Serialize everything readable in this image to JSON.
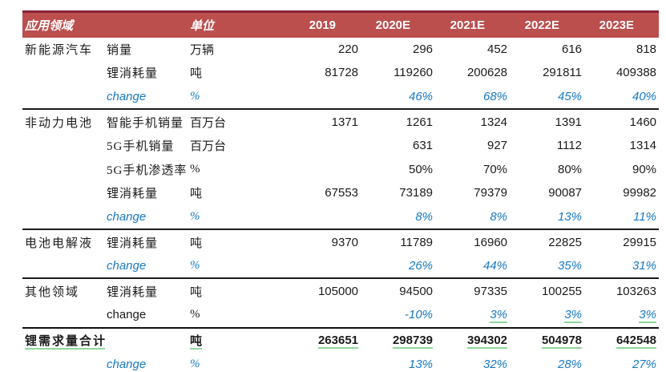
{
  "doc": {
    "type": "lithium-demand-forecast-table",
    "colors": {
      "header_bar": "#bb4f4e",
      "header_top_border": "#8c2135",
      "bottom_rule": "#c0504d",
      "change_blue": "#1779c4",
      "green_underline": "#90d79b",
      "section_rule": "#1b1b1b"
    }
  },
  "table": {
    "header": {
      "app_label": "应用领域",
      "unit_label": "单位",
      "years": [
        "2019",
        "2020E",
        "2021E",
        "2022E",
        "2023E"
      ]
    },
    "rows": [
      {
        "group": "新能源汽车",
        "item": "销量",
        "unit": "万辆",
        "values": [
          "220",
          "296",
          "452",
          "616",
          "818"
        ],
        "label_style": "",
        "values_style": "",
        "section": ""
      },
      {
        "group": "",
        "item": "锂消耗量",
        "unit": "吨",
        "values": [
          "81728",
          "119260",
          "200628",
          "291811",
          "409388"
        ],
        "label_style": "",
        "values_style": "",
        "section": ""
      },
      {
        "group": "",
        "item": "change",
        "unit": "%",
        "values": [
          "",
          "46%",
          "68%",
          "45%",
          "40%"
        ],
        "label_style": "blue",
        "values_style": "blue",
        "section": ""
      },
      {
        "group": "非动力电池",
        "item": "智能手机销量",
        "unit": "百万台",
        "values": [
          "1371",
          "1261",
          "1324",
          "1391",
          "1460"
        ],
        "label_style": "",
        "values_style": "",
        "section": "start"
      },
      {
        "group": "",
        "item": "5G手机销量",
        "unit": "百万台",
        "values": [
          "",
          "631",
          "927",
          "1112",
          "1314"
        ],
        "label_style": "",
        "values_style": "",
        "section": ""
      },
      {
        "group": "",
        "item": "5G手机渗透率",
        "unit": "%",
        "values": [
          "",
          "50%",
          "70%",
          "80%",
          "90%"
        ],
        "label_style": "",
        "values_style": "",
        "section": ""
      },
      {
        "group": "",
        "item": "锂消耗量",
        "unit": "吨",
        "values": [
          "67553",
          "73189",
          "79379",
          "90087",
          "99982"
        ],
        "label_style": "",
        "values_style": "",
        "section": ""
      },
      {
        "group": "",
        "item": "change",
        "unit": "%",
        "values": [
          "",
          "8%",
          "8%",
          "13%",
          "11%"
        ],
        "label_style": "blue",
        "values_style": "blue",
        "section": ""
      },
      {
        "group": "电池电解液",
        "item": "锂消耗量",
        "unit": "吨",
        "values": [
          "9370",
          "11789",
          "16960",
          "22825",
          "29915"
        ],
        "label_style": "",
        "values_style": "",
        "section": "start"
      },
      {
        "group": "",
        "item": "change",
        "unit": "%",
        "values": [
          "",
          "26%",
          "44%",
          "35%",
          "31%"
        ],
        "label_style": "blue",
        "values_style": "blue",
        "section": ""
      },
      {
        "group": "其他领域",
        "item": "锂消耗量",
        "unit": "吨",
        "values": [
          "105000",
          "94500",
          "97335",
          "100255",
          "103263"
        ],
        "label_style": "",
        "values_style": "",
        "section": "start"
      },
      {
        "group": "",
        "item": "change",
        "unit": "%",
        "values": [
          "",
          "-10%",
          "3%",
          "3%",
          "3%"
        ],
        "label_style": "black",
        "values_style": "blue",
        "underline_values": [
          2,
          3,
          4
        ],
        "section": ""
      },
      {
        "group": "锂需求量合计",
        "item": "",
        "unit": "吨",
        "values": [
          "263651",
          "298739",
          "394302",
          "504978",
          "642548"
        ],
        "label_style": "",
        "values_style": "",
        "underline_label": true,
        "underline_unit": true,
        "underline_values": [
          0,
          1,
          2,
          3,
          4
        ],
        "section": "total"
      },
      {
        "group": "",
        "item": "change",
        "unit": "%",
        "values": [
          "",
          "13%",
          "32%",
          "28%",
          "27%"
        ],
        "label_style": "blue",
        "values_style": "blue",
        "section": ""
      }
    ]
  }
}
